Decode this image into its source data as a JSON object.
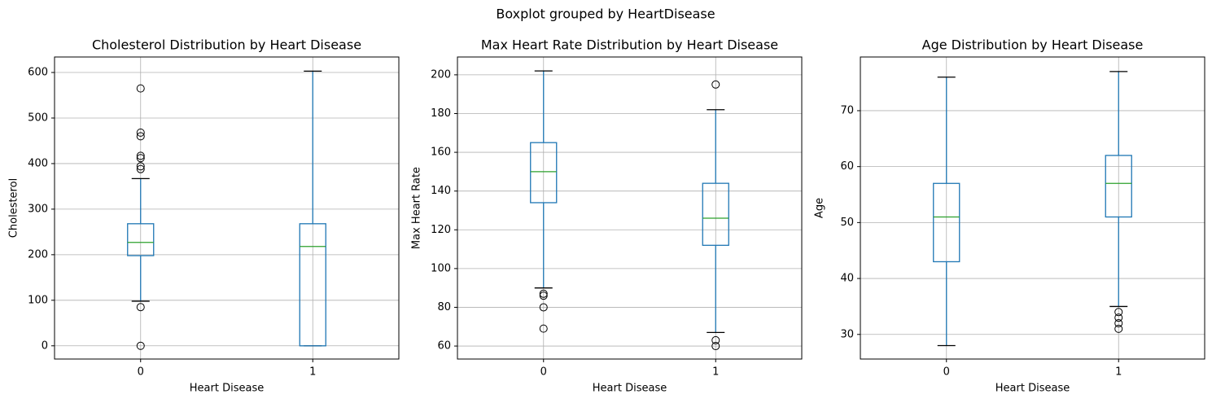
{
  "title": "Boxplot grouped by HeartDisease",
  "chart_data": [
    {
      "type": "box",
      "title": "Cholesterol Distribution by Heart Disease",
      "xlabel": "Heart Disease",
      "ylabel": "Cholesterol",
      "categories": [
        "0",
        "1"
      ],
      "boxes": [
        {
          "whislo": 98,
          "q1": 198,
          "med": 227,
          "q3": 268,
          "whishi": 367,
          "fliers": [
            565,
            468,
            460,
            417,
            412,
            394,
            388,
            85,
            0
          ]
        },
        {
          "whislo": 0,
          "q1": 0,
          "med": 218,
          "q3": 268,
          "whishi": 603,
          "fliers": []
        }
      ],
      "ylim": [
        -29,
        634
      ],
      "yticks": [
        0,
        100,
        200,
        300,
        400,
        500,
        600
      ],
      "grid": true,
      "color": "#1f77b4",
      "median_color": "#2ca02c"
    },
    {
      "type": "box",
      "title": "Max Heart Rate Distribution by Heart Disease",
      "xlabel": "Heart Disease",
      "ylabel": "Max Heart Rate",
      "categories": [
        "0",
        "1"
      ],
      "boxes": [
        {
          "whislo": 90,
          "q1": 134,
          "med": 150,
          "q3": 165,
          "whishi": 202,
          "fliers": [
            87,
            86,
            80,
            69
          ]
        },
        {
          "whislo": 67,
          "q1": 112,
          "med": 126,
          "q3": 144,
          "whishi": 182,
          "fliers": [
            195,
            63,
            60
          ]
        }
      ],
      "ylim": [
        53.3,
        209.2
      ],
      "yticks": [
        60,
        80,
        100,
        120,
        140,
        160,
        180,
        200
      ],
      "grid": true,
      "color": "#1f77b4",
      "median_color": "#2ca02c"
    },
    {
      "type": "box",
      "title": "Age Distribution by Heart Disease",
      "xlabel": "Heart Disease",
      "ylabel": "Age",
      "categories": [
        "0",
        "1"
      ],
      "boxes": [
        {
          "whislo": 28,
          "q1": 43,
          "med": 51,
          "q3": 57,
          "whishi": 76,
          "fliers": []
        },
        {
          "whislo": 35,
          "q1": 51,
          "med": 57,
          "q3": 62,
          "whishi": 77,
          "fliers": [
            34,
            33,
            32,
            31
          ]
        }
      ],
      "ylim": [
        25.6,
        79.6
      ],
      "yticks": [
        30,
        40,
        50,
        60,
        70
      ],
      "grid": true,
      "color": "#1f77b4",
      "median_color": "#2ca02c"
    }
  ]
}
